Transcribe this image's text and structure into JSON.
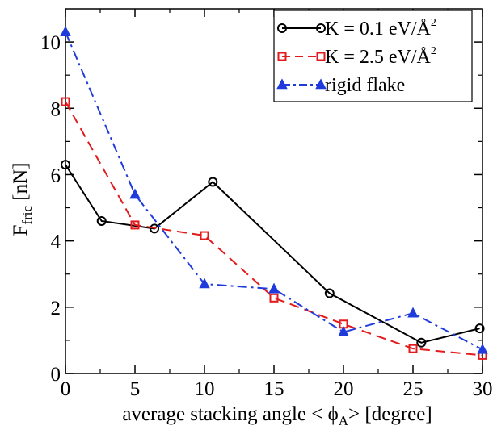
{
  "chart_data": {
    "type": "line",
    "xlabel": {
      "main": "average stacking angle < ",
      "phi": "ϕ",
      "sub": "A",
      "tail": "> [degree]"
    },
    "ylabel": {
      "main": "F",
      "sub": "fric",
      "tail": " [nN]"
    },
    "xlim": [
      0,
      30
    ],
    "ylim": [
      0,
      11
    ],
    "xticks": [
      0,
      5,
      10,
      15,
      20,
      25,
      30
    ],
    "yticks": [
      0,
      2,
      4,
      6,
      8,
      10
    ],
    "grid": false,
    "legend_position": "top-right",
    "series": [
      {
        "name": "K = 0.1 eV/Å²",
        "name_parts": {
          "main": "K = 0.1 eV/Å",
          "sup": "2"
        },
        "color": "#000000",
        "line": "solid",
        "marker": "circle",
        "x": [
          0,
          2.6,
          6.4,
          10.6,
          19,
          25.6,
          29.8
        ],
        "y": [
          6.3,
          4.6,
          4.37,
          5.78,
          2.42,
          0.93,
          1.36
        ]
      },
      {
        "name": "K = 2.5 eV/Å²",
        "name_parts": {
          "main": "K = 2.5 eV/Å",
          "sup": "2"
        },
        "color": "#e31a1c",
        "line": "dashed",
        "marker": "square",
        "x": [
          0,
          5,
          10,
          15,
          20,
          25,
          30
        ],
        "y": [
          8.2,
          4.48,
          4.16,
          2.28,
          1.49,
          0.75,
          0.55
        ]
      },
      {
        "name": "rigid flake",
        "name_parts": {
          "main": "rigid flake",
          "sup": ""
        },
        "color": "#1f3bdc",
        "line": "dash-dot",
        "marker": "triangle",
        "x": [
          0,
          5,
          10,
          15,
          20,
          25,
          30
        ],
        "y": [
          10.3,
          5.4,
          2.7,
          2.55,
          1.25,
          1.82,
          0.72
        ]
      }
    ]
  }
}
